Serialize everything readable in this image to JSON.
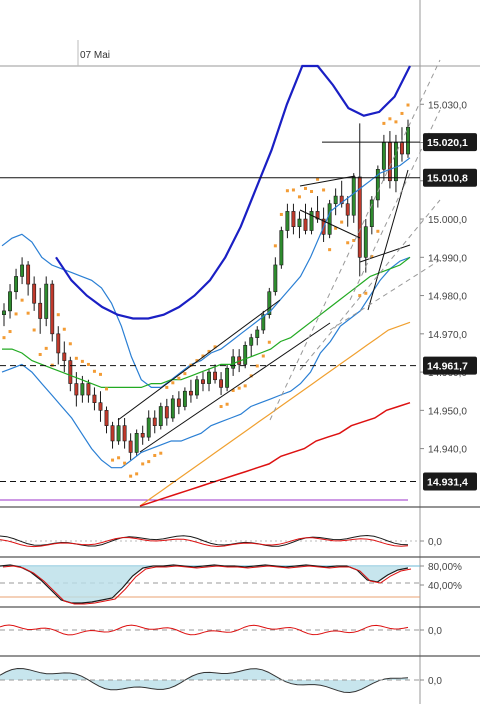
{
  "chart_data": [
    {
      "type": "line",
      "title": "",
      "date_label": "07 Mai",
      "ylim": [
        14925,
        15040
      ],
      "y_ticks": [
        15030.0,
        15020.0,
        15010.0,
        15000.0,
        14990.0,
        14980.0,
        14970.0,
        14960.0,
        14950.0,
        14940.0
      ],
      "y_tick_labels": [
        "15.030,0",
        "15.020,0",
        "15.010,0",
        "15.000,0",
        "14.990,0",
        "14.980,0",
        "14.970,0",
        "14.960,0",
        "14.950,0",
        "14.940,0"
      ],
      "price_markers": [
        {
          "value": 15020.1,
          "label": "15.020,1",
          "line": "solid"
        },
        {
          "value": 15010.8,
          "label": "15.010,8",
          "line": "solid"
        },
        {
          "value": 14961.7,
          "label": "14.961,7",
          "line": "dashed"
        },
        {
          "value": 14931.4,
          "label": "14.931,4",
          "line": "dashed"
        }
      ],
      "candles": [
        [
          14975,
          14978,
          14972,
          14976
        ],
        [
          14976,
          14983,
          14974,
          14981
        ],
        [
          14981,
          14987,
          14979,
          14985
        ],
        [
          14985,
          14990,
          14983,
          14988
        ],
        [
          14988,
          14989,
          14980,
          14983
        ],
        [
          14983,
          14985,
          14976,
          14978
        ],
        [
          14978,
          14982,
          14970,
          14974
        ],
        [
          14974,
          14985,
          14972,
          14983
        ],
        [
          14983,
          14984,
          14968,
          14970
        ],
        [
          14970,
          14972,
          14962,
          14965
        ],
        [
          14965,
          14968,
          14960,
          14963
        ],
        [
          14963,
          14964,
          14955,
          14957
        ],
        [
          14957,
          14960,
          14951,
          14954
        ],
        [
          14954,
          14959,
          14952,
          14957
        ],
        [
          14957,
          14958,
          14952,
          14954
        ],
        [
          14954,
          14956,
          14950,
          14952
        ],
        [
          14952,
          14955,
          14947,
          14950
        ],
        [
          14950,
          14951,
          14944,
          14946
        ],
        [
          14946,
          14947,
          14940,
          14942
        ],
        [
          14942,
          14948,
          14941,
          14946
        ],
        [
          14946,
          14948,
          14940,
          14942
        ],
        [
          14942,
          14944,
          14937,
          14939
        ],
        [
          14939,
          14945,
          14938,
          14944
        ],
        [
          14944,
          14946,
          14941,
          14943
        ],
        [
          14943,
          14950,
          14942,
          14948
        ],
        [
          14948,
          14950,
          14944,
          14946
        ],
        [
          14946,
          14952,
          14945,
          14951
        ],
        [
          14951,
          14953,
          14946,
          14948
        ],
        [
          14948,
          14954,
          14947,
          14953
        ],
        [
          14953,
          14955,
          14949,
          14951
        ],
        [
          14951,
          14956,
          14950,
          14955
        ],
        [
          14955,
          14958,
          14952,
          14954
        ],
        [
          14954,
          14959,
          14953,
          14958
        ],
        [
          14958,
          14960,
          14955,
          14957
        ],
        [
          14957,
          14961,
          14955,
          14960
        ],
        [
          14960,
          14962,
          14957,
          14958
        ],
        [
          14958,
          14960,
          14954,
          14956
        ],
        [
          14956,
          14962,
          14955,
          14961
        ],
        [
          14961,
          14966,
          14959,
          14964
        ],
        [
          14964,
          14966,
          14960,
          14962
        ],
        [
          14962,
          14968,
          14961,
          14967
        ],
        [
          14967,
          14970,
          14964,
          14969
        ],
        [
          14969,
          14972,
          14967,
          14971
        ],
        [
          14971,
          14976,
          14970,
          14975
        ],
        [
          14975,
          14982,
          14974,
          14981
        ],
        [
          14981,
          14990,
          14980,
          14988
        ],
        [
          14988,
          14998,
          14987,
          14997
        ],
        [
          14997,
          15004,
          14995,
          15002
        ],
        [
          15002,
          15004,
          14996,
          14998
        ],
        [
          14998,
          15002,
          14995,
          15000
        ],
        [
          15000,
          15004,
          14996,
          14997
        ],
        [
          14997,
          15003,
          14996,
          15002
        ],
        [
          15002,
          15006,
          14999,
          15000
        ],
        [
          15000,
          15003,
          14994,
          14996
        ],
        [
          14996,
          15005,
          14995,
          15004
        ],
        [
          15004,
          15008,
          15001,
          15006
        ],
        [
          15006,
          15010,
          15003,
          15004
        ],
        [
          15004,
          15006,
          14998,
          15001
        ],
        [
          15001,
          15012,
          14999,
          15011
        ],
        [
          15011,
          15025,
          14985,
          14990
        ],
        [
          14990,
          15000,
          14986,
          14998
        ],
        [
          14998,
          15006,
          14996,
          15005
        ],
        [
          15005,
          15014,
          15003,
          15013
        ],
        [
          15013,
          15022,
          15010,
          15020
        ],
        [
          15020,
          15023,
          15008,
          15010
        ],
        [
          15010,
          15022,
          15007,
          15020
        ],
        [
          15020,
          15024,
          15015,
          15017
        ],
        [
          15017,
          15026,
          15016,
          15024
        ]
      ],
      "indicator_lines": [
        {
          "kind": "upper band (blue)",
          "values": [
            14993,
            14995,
            14996,
            14994,
            14990,
            14988,
            14987,
            14986,
            14985,
            14984,
            14982,
            14978,
            14972,
            14964,
            14958,
            14956,
            14956,
            14958,
            14960,
            14962,
            14963,
            14965,
            14966,
            14968,
            14970,
            14972,
            14974,
            14976,
            14979,
            14982,
            14985,
            14990,
            14996,
            15002,
            15004,
            15006,
            15008,
            15010,
            15012,
            15013,
            15014,
            15016
          ]
        },
        {
          "kind": "lower band (blue)",
          "values": [
            14960,
            14961,
            14962,
            14960,
            14957,
            14954,
            14951,
            14948,
            14944,
            14940,
            14937,
            14935,
            14935,
            14937,
            14939,
            14940,
            14941,
            14942,
            14942,
            14943,
            14944,
            14946,
            14947,
            14948,
            14949,
            14951,
            14952,
            14953,
            14954,
            14955,
            14957,
            14960,
            14965,
            14968,
            14972,
            14974,
            14976,
            14980,
            14984,
            14987,
            14989,
            14990
          ]
        },
        {
          "kind": "moving average (green)",
          "values": [
            14966,
            14966,
            14965,
            14963,
            14962,
            14961,
            14960,
            14959,
            14958,
            14957,
            14956,
            14956,
            14956,
            14956,
            14956,
            14957,
            14957,
            14958,
            14958,
            14959,
            14960,
            14961,
            14962,
            14962,
            14963,
            14964,
            14965,
            14966,
            14968,
            14969,
            14971,
            14973,
            14975,
            14977,
            14979,
            14981,
            14983,
            14985,
            14986,
            14987,
            14988,
            14990
          ]
        },
        {
          "kind": "moving average (orange)",
          "values": [
            14925,
            14927,
            14929,
            14931,
            14933,
            14935,
            14937,
            14939,
            14941,
            14943,
            14945,
            14947,
            14949,
            14951,
            14953,
            14955,
            14957,
            14959,
            14961,
            14963,
            14965,
            14967,
            14969,
            14971,
            14972,
            14973
          ]
        },
        {
          "kind": "moving average (red)",
          "values": [
            14925,
            14926,
            14927,
            14928,
            14929,
            14930,
            14931,
            14932,
            14933,
            14934,
            14935,
            14936,
            14938,
            14939,
            14940,
            14942,
            14943,
            14944,
            14946,
            14947,
            14948,
            14950,
            14951,
            14952
          ]
        },
        {
          "kind": "envelope (dark blue)",
          "values": [
            14990,
            14984,
            14980,
            14977,
            14975,
            14974,
            14974,
            14975,
            14977,
            14980,
            14984,
            14990,
            14998,
            15008,
            15018,
            15030,
            15040,
            15040,
            15035,
            15029,
            15027,
            15028,
            15032,
            15040
          ]
        }
      ],
      "grid": false
    },
    {
      "type": "line",
      "panel": "oscillator-1",
      "y_tick_labels": [
        "0,0"
      ]
    },
    {
      "type": "area",
      "panel": "stochastic",
      "y_tick_labels": [
        "80,00%",
        "40,00%"
      ]
    },
    {
      "type": "line",
      "panel": "oscillator-2",
      "y_tick_labels": [
        "0,0"
      ]
    },
    {
      "type": "area",
      "panel": "oscillator-3",
      "y_tick_labels": [
        "0,0"
      ]
    }
  ],
  "colors": {
    "candle_up": "#2e8b2e",
    "candle_down": "#c0392b",
    "band": "#2a7fd4",
    "envelope": "#1a1fc4",
    "ma_green": "#22aa22",
    "ma_orange": "#f0a030",
    "ma_red": "#dd1111",
    "sar": "#f39c35",
    "label_bg": "#1a1a1a",
    "label_text": "#ffffff"
  }
}
